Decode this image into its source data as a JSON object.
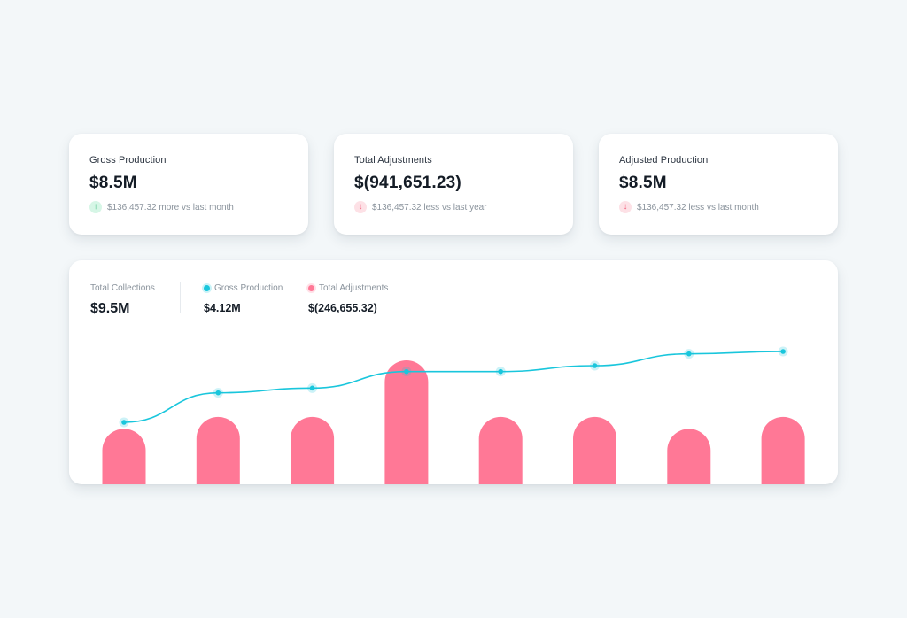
{
  "stat_cards": [
    {
      "label": "Gross Production",
      "value": "$8.5M",
      "trend_direction": "up",
      "trend_icon": "arrow-up-icon",
      "trend_text": "$136,457.32 more vs last month"
    },
    {
      "label": "Total Adjustments",
      "value": "$(941,651.23)",
      "trend_direction": "down",
      "trend_icon": "arrow-down-icon",
      "trend_text": "$136,457.32 less vs last year"
    },
    {
      "label": "Adjusted Production",
      "value": "$8.5M",
      "trend_direction": "down",
      "trend_icon": "arrow-down-icon",
      "trend_text": "$136,457.32 less vs last month"
    }
  ],
  "collections": {
    "total_label": "Total Collections",
    "total_value": "$9.5M",
    "legend": [
      {
        "label": "Gross Production",
        "value": "$4.12M",
        "color": "#19c6dc"
      },
      {
        "label": "Total Adjustments",
        "value": "$(246,655.32)",
        "color": "#ff7896"
      }
    ]
  },
  "colors": {
    "line": "#19c6dc",
    "bar": "#ff7896",
    "up": "#27b36f",
    "down": "#f2647f"
  },
  "chart_data": {
    "type": "bar",
    "categories": [
      "",
      "",
      "",
      "",
      "",
      "",
      "",
      ""
    ],
    "series": [
      {
        "name": "Total Adjustments",
        "type": "bar",
        "values": [
          51,
          62,
          62,
          114,
          62,
          62,
          51,
          62
        ]
      },
      {
        "name": "Gross Production",
        "type": "line",
        "values": [
          40,
          65,
          69,
          83,
          83,
          88,
          98,
          100
        ]
      }
    ],
    "grid": false,
    "legend": "top-left"
  }
}
